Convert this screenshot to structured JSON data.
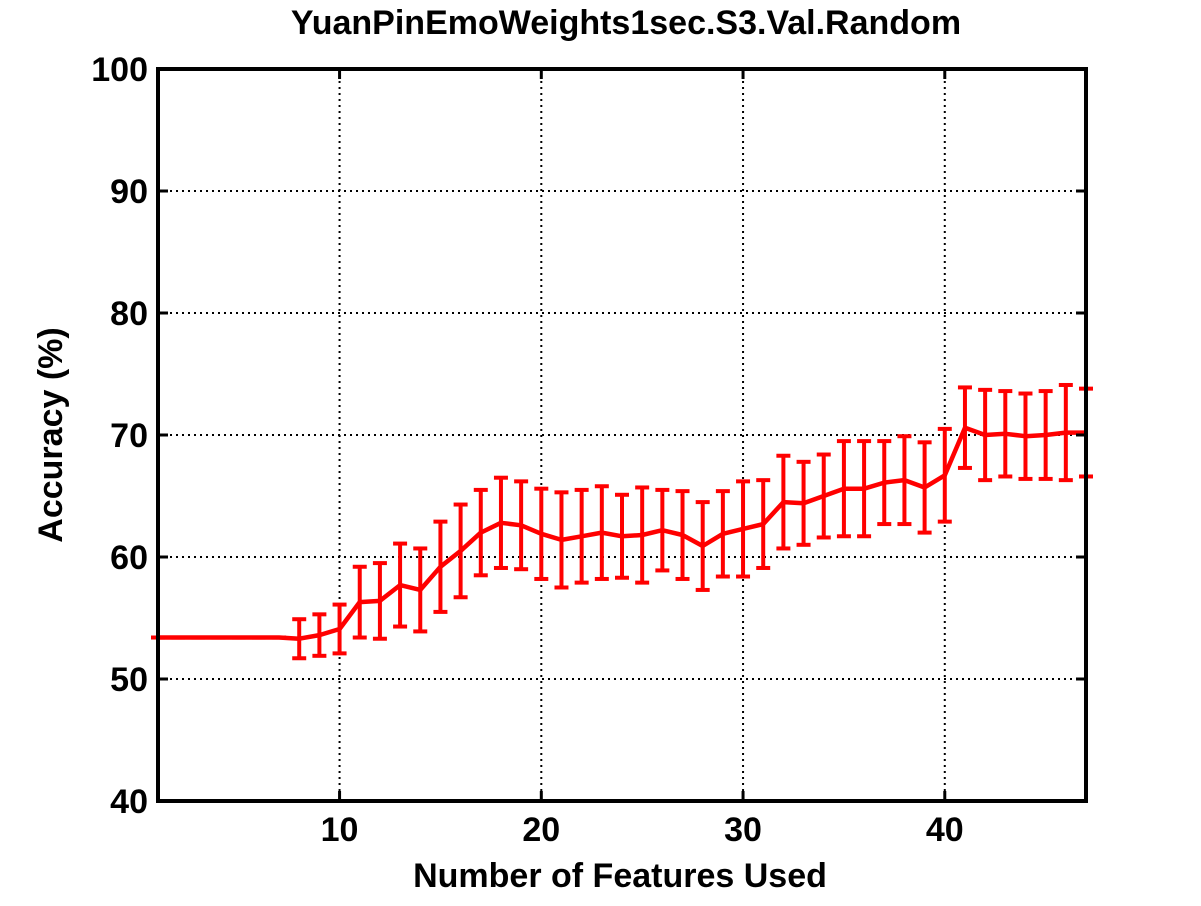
{
  "chart_data": {
    "type": "line",
    "title": "YuanPinEmoWeights1sec.S3.Val.Random",
    "xlabel": "Number of Features Used",
    "ylabel": "Accuracy (%)",
    "xlim": [
      1,
      47
    ],
    "ylim": [
      40,
      100
    ],
    "xticks": [
      10,
      20,
      30,
      40
    ],
    "yticks": [
      40,
      50,
      60,
      70,
      80,
      90,
      100
    ],
    "grid": true,
    "grid_style": "dotted",
    "error_bars": true,
    "colors": {
      "series": "#ff0000",
      "axes": "#000000",
      "grid": "#000000",
      "background": "#ffffff"
    },
    "series": [
      {
        "x": [
          1,
          2,
          3,
          4,
          5,
          6,
          7,
          8,
          9,
          10,
          11,
          12,
          13,
          14,
          15,
          16,
          17,
          18,
          19,
          20,
          21,
          22,
          23,
          24,
          25,
          26,
          27,
          28,
          29,
          30,
          31,
          32,
          33,
          34,
          35,
          36,
          37,
          38,
          39,
          40,
          41,
          42,
          43,
          44,
          45,
          46,
          47
        ],
        "y": [
          53.4,
          53.4,
          53.4,
          53.4,
          53.4,
          53.4,
          53.4,
          53.3,
          53.6,
          54.1,
          56.3,
          56.4,
          57.7,
          57.3,
          59.2,
          60.5,
          62.0,
          62.8,
          62.6,
          61.9,
          61.4,
          61.7,
          62.0,
          61.7,
          61.8,
          62.2,
          61.8,
          60.9,
          61.9,
          62.3,
          62.7,
          64.5,
          64.4,
          65.0,
          65.6,
          65.6,
          66.1,
          66.3,
          65.7,
          66.7,
          70.6,
          70.0,
          70.1,
          69.9,
          70.0,
          70.2,
          70.2
        ],
        "err": [
          0.0,
          0.0,
          0.0,
          0.0,
          0.0,
          0.0,
          0.0,
          1.6,
          1.7,
          2.0,
          2.9,
          3.1,
          3.4,
          3.4,
          3.7,
          3.8,
          3.5,
          3.7,
          3.6,
          3.7,
          3.9,
          3.8,
          3.8,
          3.4,
          3.9,
          3.3,
          3.6,
          3.6,
          3.5,
          3.9,
          3.6,
          3.8,
          3.4,
          3.4,
          3.9,
          3.9,
          3.4,
          3.6,
          3.7,
          3.8,
          3.3,
          3.7,
          3.5,
          3.5,
          3.6,
          3.9,
          3.6
        ]
      }
    ]
  }
}
